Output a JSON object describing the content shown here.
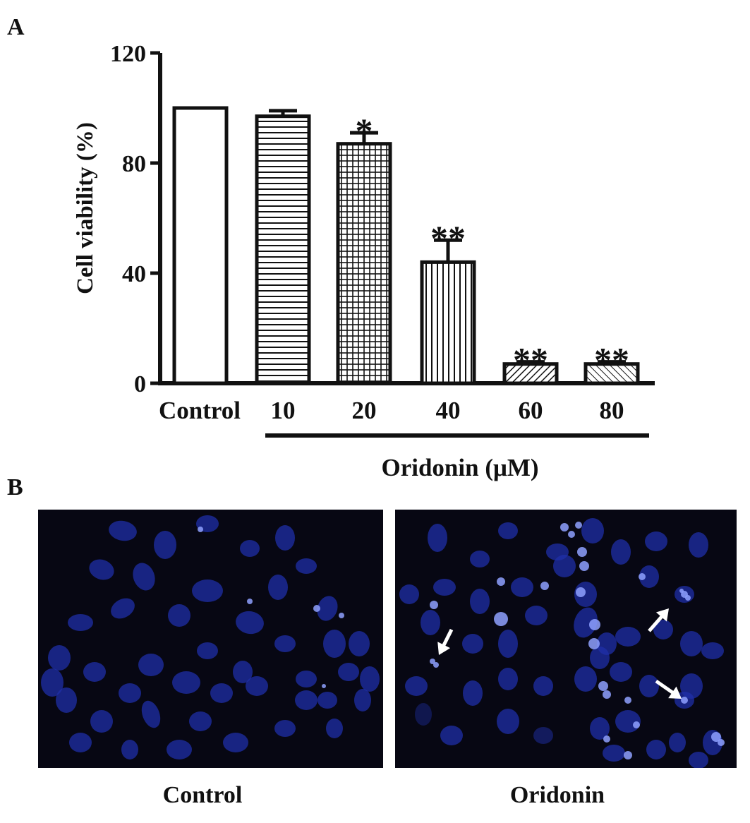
{
  "panels": {
    "a_label": "A",
    "b_label": "B"
  },
  "chart_data": {
    "type": "bar",
    "categories": [
      "Control",
      "10",
      "20",
      "40",
      "60",
      "80"
    ],
    "values": [
      100,
      97,
      87,
      44,
      7,
      7
    ],
    "errors": [
      0,
      2,
      4,
      8,
      0.8,
      0.8
    ],
    "significance": [
      "",
      "",
      "*",
      "**",
      "**",
      "**"
    ],
    "ylabel": "Cell viability (%)",
    "xlabel": "Oridonin (μM)",
    "ylim": [
      0,
      120
    ],
    "yticks": [
      0,
      40,
      80,
      120
    ],
    "patterns": [
      "none",
      "horizontal",
      "grid",
      "vertical",
      "diagonal-right",
      "diagonal-left"
    ],
    "grid": false,
    "legend": "none"
  },
  "images": {
    "left_caption": "Control",
    "right_caption": "Oridonin",
    "nucleus_color": "#1f2fa8",
    "background_color": "#070713"
  }
}
